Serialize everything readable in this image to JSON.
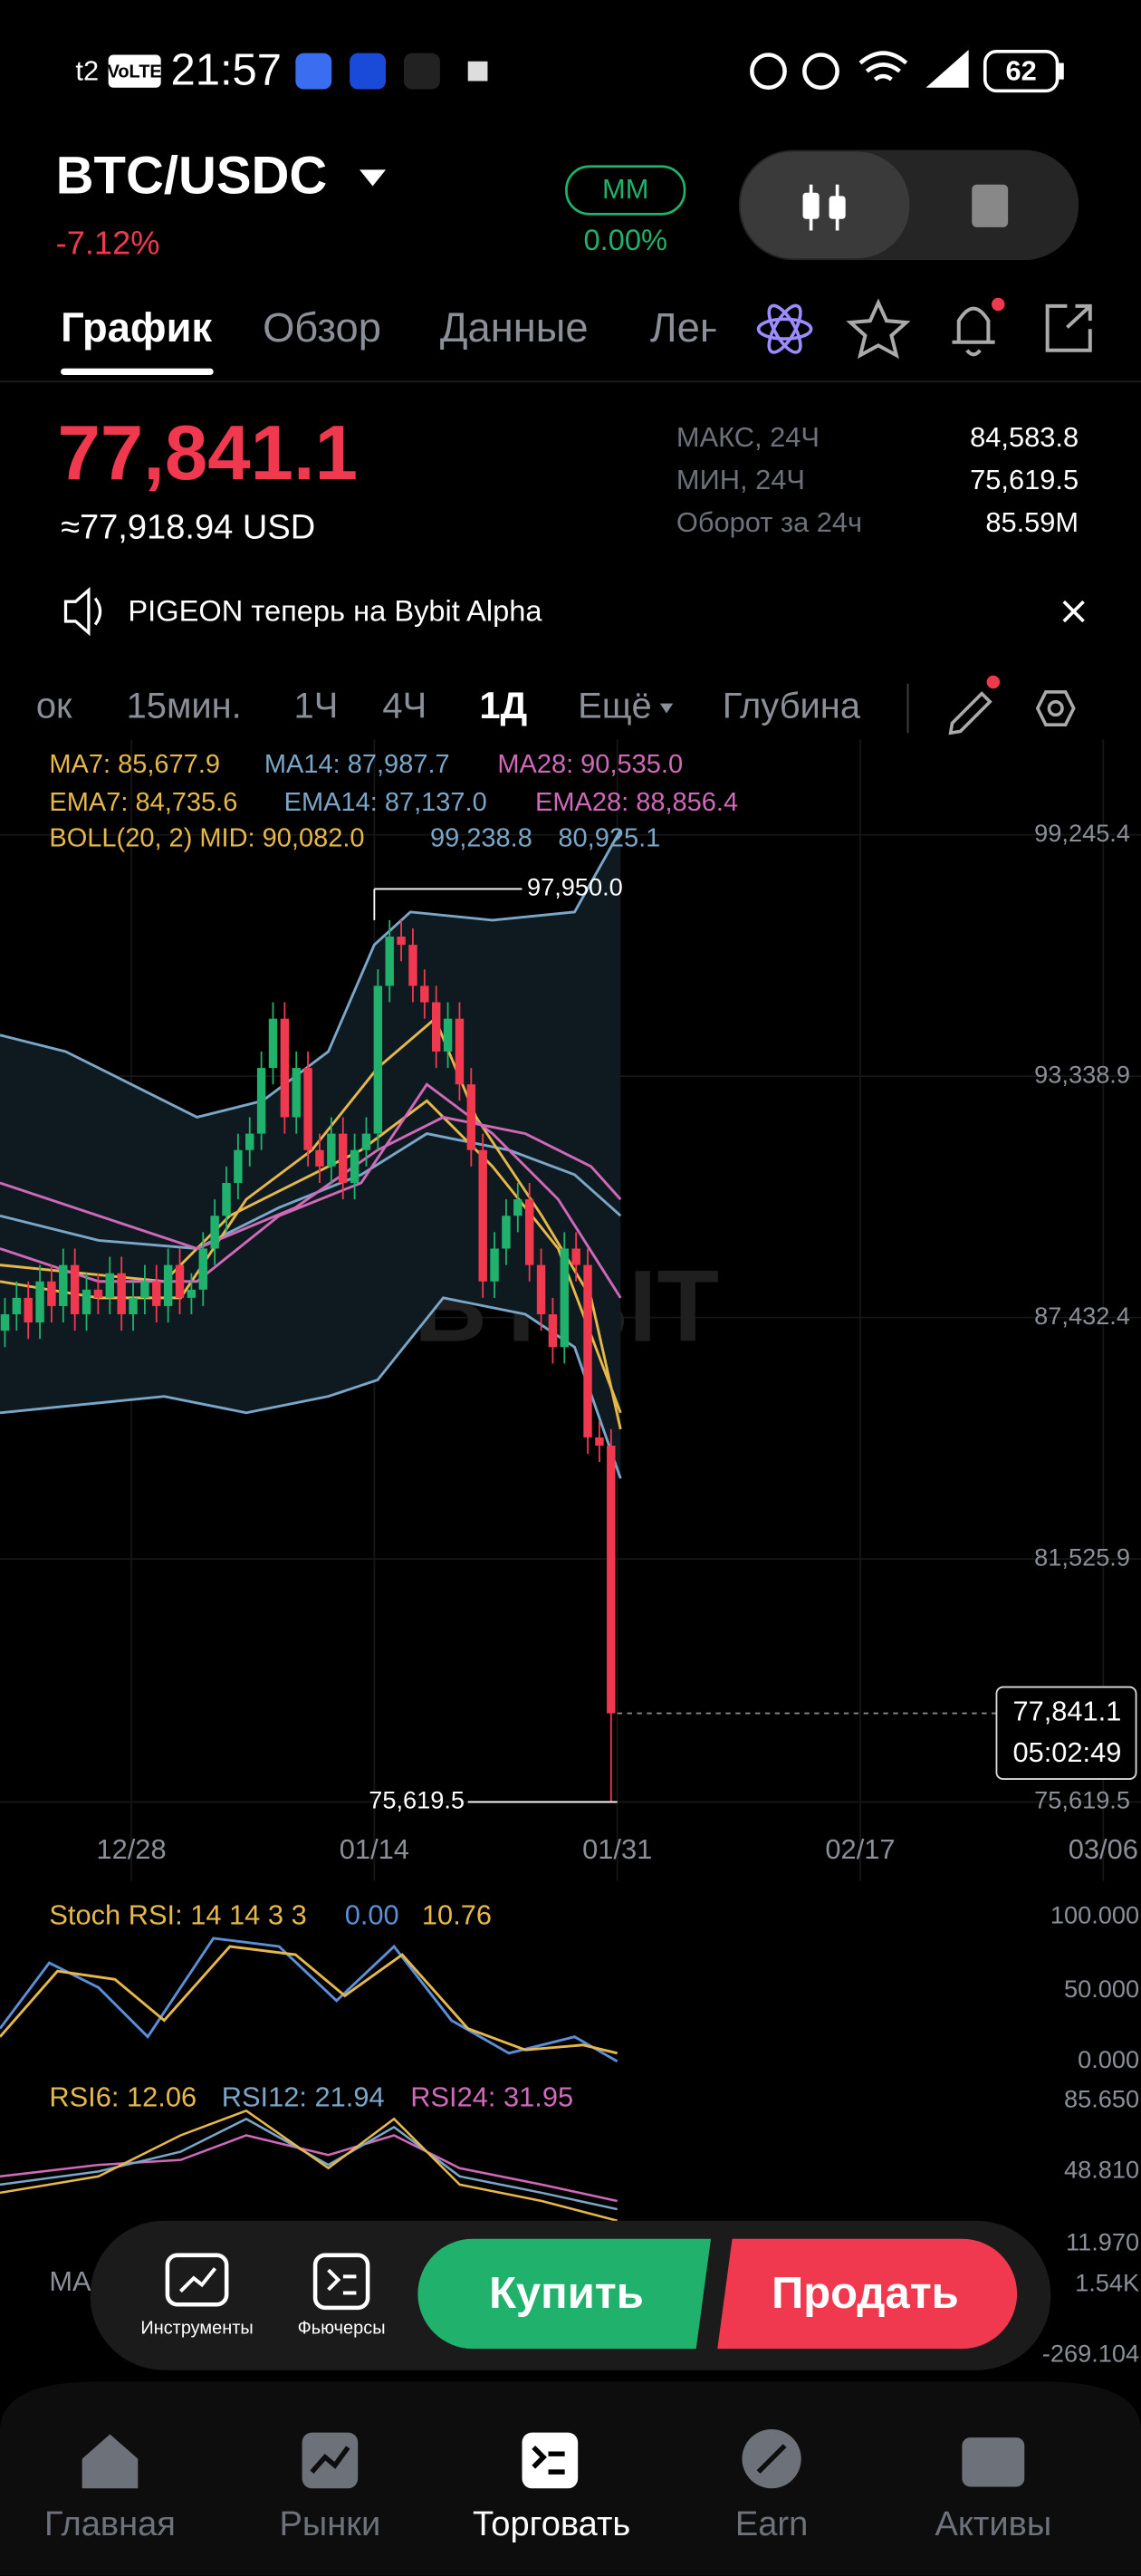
{
  "status_bar": {
    "carrier": "t2",
    "volte": "VoLTE",
    "time": "21:57",
    "battery": "62"
  },
  "header": {
    "pair": "BTC/USDC",
    "change": "-7.12%",
    "mm_label": "MM",
    "mm_value": "0.00%"
  },
  "tabs": [
    "График",
    "Обзор",
    "Данные",
    "Лен"
  ],
  "price": {
    "last": "77,841.1",
    "usd": "≈77,918.94 USD",
    "stats": [
      {
        "label": "МАКС, 24Ч",
        "value": "84,583.8"
      },
      {
        "label": "МИН, 24Ч",
        "value": "75,619.5"
      },
      {
        "label": "Оборот за 24ч",
        "value": "85.59M"
      }
    ]
  },
  "announcement": "PIGEON теперь на Bybit Alpha",
  "intervals": [
    "ок",
    "15мин.",
    "1Ч",
    "4Ч",
    "1Д",
    "Ещё",
    "Глубина"
  ],
  "indicators": {
    "ma": [
      "MA7: 85,677.9",
      "MA14: 87,987.7",
      "MA28: 90,535.0"
    ],
    "ema": [
      "EMA7: 84,735.6",
      "EMA14: 87,137.0",
      "EMA28: 88,856.4"
    ],
    "boll": [
      "BOLL(20, 2) MID: 90,082.0",
      "99,238.8",
      "80,925.1"
    ]
  },
  "chart": {
    "watermark": "BYBIT",
    "price_axis": [
      "99,245.4",
      "93,338.9",
      "87,432.4",
      "81,525.9",
      "75,619.5"
    ],
    "high_marker": "97,950.0",
    "low_marker": "75,619.5",
    "current_price": "77,841.1",
    "countdown": "05:02:49",
    "date_axis": [
      "12/28",
      "01/14",
      "01/31",
      "02/17",
      "03/06"
    ]
  },
  "stoch_rsi": {
    "label": "Stoch RSI: 14 14 3 3",
    "k": "0.00",
    "d": "10.76",
    "axis": [
      "100.000",
      "50.000",
      "0.000"
    ]
  },
  "rsi": {
    "labels": [
      "RSI6: 12.06",
      "RSI12: 21.94",
      "RSI24: 31.95"
    ],
    "axis": [
      "85.650",
      "48.810",
      "11.970"
    ]
  },
  "macd": {
    "label": "MA",
    "axis": [
      "1.54K",
      "-269.104"
    ]
  },
  "toolbar": {
    "tools": "Инструменты",
    "futures": "Фьючерсы",
    "buy": "Купить",
    "sell": "Продать"
  },
  "nav": [
    "Главная",
    "Рынки",
    "Торговать",
    "Earn",
    "Активы"
  ]
}
